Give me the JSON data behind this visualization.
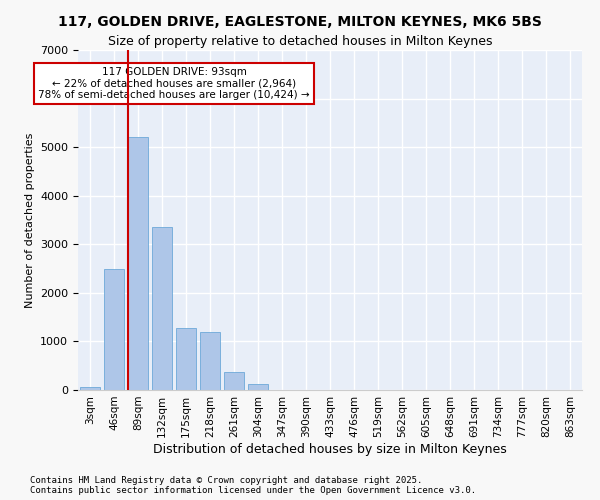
{
  "title_line1": "117, GOLDEN DRIVE, EAGLESTONE, MILTON KEYNES, MK6 5BS",
  "title_line2": "Size of property relative to detached houses in Milton Keynes",
  "xlabel": "Distribution of detached houses by size in Milton Keynes",
  "ylabel": "Number of detached properties",
  "bar_labels": [
    "3sqm",
    "46sqm",
    "89sqm",
    "132sqm",
    "175sqm",
    "218sqm",
    "261sqm",
    "304sqm",
    "347sqm",
    "390sqm",
    "433sqm",
    "476sqm",
    "519sqm",
    "562sqm",
    "605sqm",
    "648sqm",
    "691sqm",
    "734sqm",
    "777sqm",
    "820sqm",
    "863sqm"
  ],
  "bar_values": [
    60,
    2500,
    5200,
    3350,
    1280,
    1200,
    380,
    130,
    0,
    0,
    0,
    0,
    0,
    0,
    0,
    0,
    0,
    0,
    0,
    0,
    0
  ],
  "bar_color": "#aec6e8",
  "bar_edge_color": "#5a9fd4",
  "bg_color": "#e8eef8",
  "grid_color": "#ffffff",
  "vline_x": 2,
  "vline_color": "#cc0000",
  "annotation_title": "117 GOLDEN DRIVE: 93sqm",
  "annotation_line2": "← 22% of detached houses are smaller (2,964)",
  "annotation_line3": "78% of semi-detached houses are larger (10,424) →",
  "annotation_box_color": "#cc0000",
  "ylim": [
    0,
    7000
  ],
  "yticks": [
    0,
    1000,
    2000,
    3000,
    4000,
    5000,
    6000,
    7000
  ],
  "footer_line1": "Contains HM Land Registry data © Crown copyright and database right 2025.",
  "footer_line2": "Contains public sector information licensed under the Open Government Licence v3.0."
}
